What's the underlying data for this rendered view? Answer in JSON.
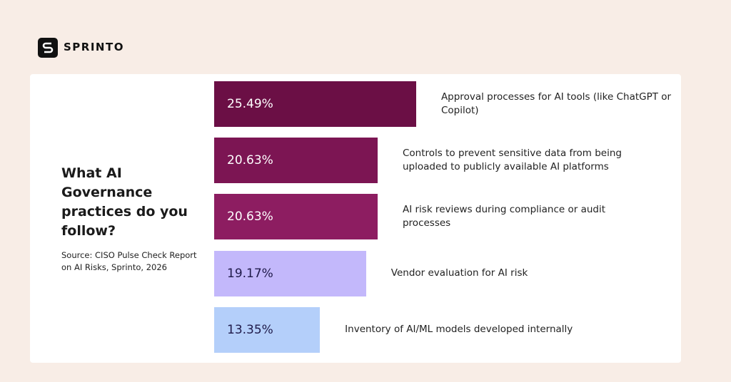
{
  "brand": "SPRINTO",
  "chart_data": {
    "type": "bar",
    "orientation": "horizontal",
    "title": "What AI Governance practices do you follow?",
    "source": "Source: CISO Pulse Check Report on AI Risks, Sprinto, 2026",
    "categories": [
      "Approval processes for AI tools (like ChatGPT or Copilot)",
      "Controls to prevent sensitive data from being uploaded to publicly available AI platforms",
      "AI risk reviews during compliance or audit processes",
      "Vendor evaluation for AI risk",
      "Inventory of AI/ML models developed internally"
    ],
    "values": [
      25.49,
      20.63,
      20.63,
      19.17,
      13.35
    ],
    "value_labels": [
      "25.49%",
      "20.63%",
      "20.63%",
      "19.17%",
      "13.35%"
    ],
    "colors": [
      "#6b0f45",
      "#7c1553",
      "#8d1d61",
      "#c3b8fb",
      "#b4cffa"
    ]
  }
}
